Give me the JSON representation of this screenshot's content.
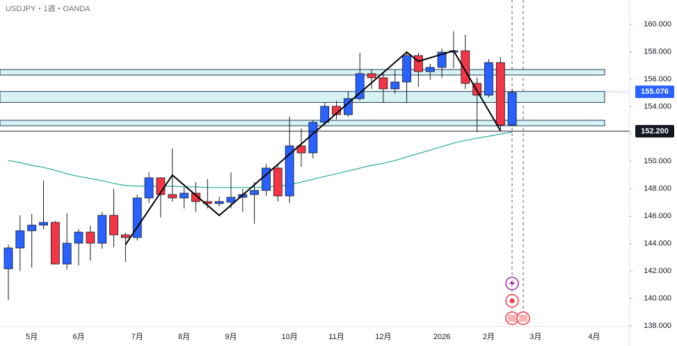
{
  "chart_data": {
    "type": "candlestick",
    "title": "USDJPY・1週・OANDA",
    "up_color": "#2962ff",
    "down_color": "#f23645",
    "candles": {
      "open": [
        142.16,
        143.68,
        144.94,
        145.35,
        145.55,
        142.51,
        144.03,
        144.84,
        144.03,
        146.06,
        144.64,
        144.44,
        147.33,
        148.8,
        147.58,
        147.33,
        147.68,
        147.07,
        146.92,
        147.02,
        147.38,
        147.58,
        147.88,
        149.51,
        147.48,
        151.13,
        150.62,
        152.85,
        154.02,
        153.41,
        154.58,
        156.4,
        156.1,
        155.29,
        155.79,
        157.72,
        156.55,
        156.86,
        157.97,
        158.07,
        155.69,
        154.83,
        157.21,
        152.65
      ],
      "high": [
        143.93,
        146.06,
        146.16,
        148.59,
        145.65,
        146.21,
        145.05,
        145.3,
        146.31,
        147.99,
        144.79,
        147.58,
        149.2,
        148.85,
        150.93,
        148.09,
        148.49,
        148.7,
        147.43,
        149.2,
        147.99,
        148.49,
        149.81,
        149.71,
        153.26,
        152.4,
        153.0,
        154.27,
        154.42,
        155.08,
        157.92,
        156.7,
        156.45,
        156.7,
        157.97,
        157.92,
        157.11,
        158.23,
        159.49,
        159.24,
        156.1,
        157.47,
        157.62,
        155.29
      ],
      "low": [
        139.88,
        142.0,
        142.26,
        145.05,
        142.51,
        142.11,
        142.41,
        142.76,
        143.63,
        143.73,
        142.66,
        144.23,
        146.97,
        145.91,
        147.07,
        146.57,
        146.31,
        146.57,
        146.72,
        146.57,
        146.31,
        145.45,
        147.48,
        147.07,
        146.97,
        149.61,
        150.22,
        152.65,
        153.06,
        153.26,
        154.42,
        155.29,
        154.32,
        154.93,
        154.32,
        155.44,
        155.94,
        156.1,
        156.81,
        155.29,
        152.14,
        154.68,
        152.24,
        152.55
      ],
      "close": [
        143.68,
        144.94,
        145.35,
        145.55,
        142.51,
        144.03,
        144.84,
        144.03,
        146.06,
        144.64,
        144.44,
        147.33,
        148.8,
        147.58,
        147.33,
        147.68,
        147.07,
        146.92,
        147.07,
        147.38,
        147.58,
        147.88,
        149.51,
        147.48,
        151.13,
        150.62,
        152.85,
        154.02,
        153.41,
        154.58,
        156.4,
        156.1,
        155.29,
        155.79,
        157.72,
        156.55,
        156.86,
        157.97,
        158.07,
        155.69,
        154.83,
        157.21,
        152.65,
        155.03
      ]
    },
    "ma": {
      "color": "#22ab94",
      "values": [
        150.06,
        149.91,
        149.71,
        149.56,
        149.35,
        149.1,
        148.9,
        148.75,
        148.59,
        148.39,
        148.24,
        148.19,
        148.19,
        148.19,
        148.19,
        148.14,
        148.14,
        148.09,
        148.09,
        148.09,
        148.09,
        148.09,
        148.14,
        148.19,
        148.29,
        148.49,
        148.7,
        148.9,
        149.1,
        149.3,
        149.51,
        149.71,
        149.86,
        150.06,
        150.32,
        150.57,
        150.82,
        151.08,
        151.33,
        151.53,
        151.69,
        151.84,
        151.99,
        152.14
      ]
    },
    "zigzag": {
      "color": "#000000",
      "x": [
        10,
        14,
        18,
        34,
        35,
        38,
        42
      ],
      "values": [
        143.93,
        149.0,
        146.06,
        157.97,
        157.3,
        158.07,
        152.24
      ]
    },
    "zones": [
      [
        156.3,
        156.7
      ],
      [
        154.3,
        155.1
      ],
      [
        152.6,
        153.0
      ]
    ],
    "hline": {
      "value": 152.2,
      "label": "152.200"
    },
    "last_price": 155.076,
    "ylim": [
      137.7,
      161.4
    ],
    "yticks": [
      {
        "value": 138,
        "label": "138.000"
      },
      {
        "value": 140,
        "label": "140.000"
      },
      {
        "value": 142,
        "label": "142.000"
      },
      {
        "value": 144,
        "label": "144.000"
      },
      {
        "value": 146,
        "label": "146.000"
      },
      {
        "value": 148,
        "label": "148.000"
      },
      {
        "value": 150,
        "label": "150.000"
      },
      {
        "value": 152,
        "label": "152.000"
      },
      {
        "value": 154,
        "label": "154.000"
      },
      {
        "value": 156,
        "label": "156.000"
      },
      {
        "value": 158,
        "label": "158.000"
      },
      {
        "value": 160,
        "label": "160.000"
      }
    ],
    "xticks": [
      {
        "value": 2,
        "label": "5月"
      },
      {
        "value": 6,
        "label": "6月"
      },
      {
        "value": 11,
        "label": "7月"
      },
      {
        "value": 15,
        "label": "8月"
      },
      {
        "value": 19,
        "label": "9月"
      },
      {
        "value": 24,
        "label": "10月"
      },
      {
        "value": 28,
        "label": "11月"
      },
      {
        "value": 32,
        "label": "12月"
      },
      {
        "value": 37,
        "label": "2026"
      },
      {
        "value": 41,
        "label": "2月"
      },
      {
        "value": 45,
        "label": "3月"
      },
      {
        "value": 50,
        "label": "4月"
      }
    ]
  }
}
